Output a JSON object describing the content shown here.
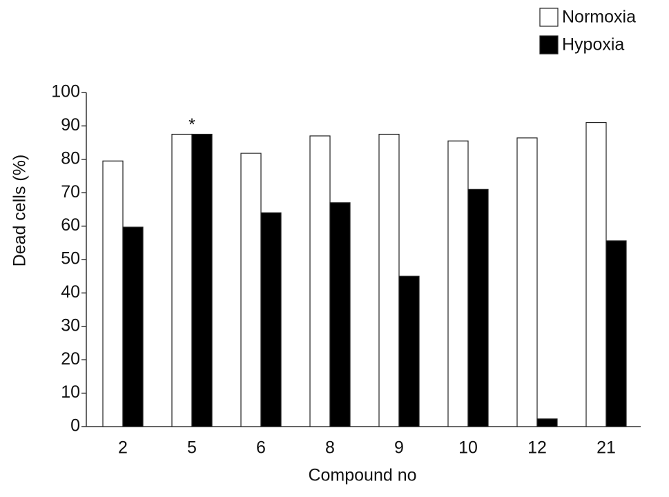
{
  "chart_data": {
    "type": "bar",
    "categories": [
      "2",
      "5",
      "6",
      "8",
      "9",
      "10",
      "12",
      "21"
    ],
    "series": [
      {
        "name": "Normoxia",
        "color": "#ffffff",
        "values": [
          79.5,
          87.5,
          81.8,
          87,
          87.5,
          85.5,
          86.4,
          91
        ]
      },
      {
        "name": "Hypoxia",
        "color": "#000000",
        "values": [
          59.7,
          87.5,
          64,
          67,
          45,
          71,
          2.3,
          55.6
        ]
      }
    ],
    "x_label": "Compound no",
    "y_label": "Dead cells (%)",
    "ylim": [
      0,
      100
    ],
    "yticks": [
      0,
      10,
      20,
      30,
      40,
      50,
      60,
      70,
      80,
      90,
      100
    ],
    "grid": false,
    "legend_position": "top-right",
    "annotations": [
      {
        "text": "*",
        "category": "5"
      }
    ]
  }
}
